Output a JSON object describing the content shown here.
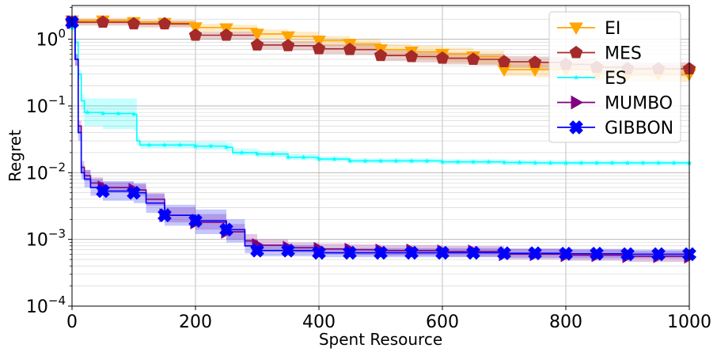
{
  "chart_data": {
    "type": "line",
    "title": "",
    "xlabel": "Spent Resource",
    "ylabel": "Regret",
    "xlim": [
      0,
      1000
    ],
    "ylim": [
      0.0001,
      3.2
    ],
    "yscale": "log",
    "grid": true,
    "legend_position": "top-right",
    "x_ticks": [
      0,
      200,
      400,
      600,
      800,
      1000
    ],
    "x_tick_labels": [
      "0",
      "200",
      "400",
      "600",
      "800",
      "1000"
    ],
    "y_ticks": [
      0.0001,
      0.001,
      0.01,
      0.1,
      1
    ],
    "y_tick_labels": [
      {
        "base": "10",
        "exp": "−4"
      },
      {
        "base": "10",
        "exp": "−3"
      },
      {
        "base": "10",
        "exp": "−2"
      },
      {
        "base": "10",
        "exp": "−1"
      },
      {
        "base": "10",
        "exp": "0"
      }
    ],
    "series": [
      {
        "name": "EI",
        "color": "#ffa500",
        "marker": "triangle-down",
        "x": [
          0,
          50,
          100,
          150,
          200,
          250,
          300,
          350,
          400,
          450,
          500,
          550,
          600,
          650,
          700,
          750,
          800,
          850,
          900,
          950,
          1000
        ],
        "y": [
          1.9,
          1.9,
          1.8,
          1.75,
          1.5,
          1.45,
          1.2,
          1.1,
          0.95,
          0.85,
          0.7,
          0.65,
          0.6,
          0.55,
          0.35,
          0.35,
          0.35,
          0.3,
          0.3,
          0.3,
          0.3
        ],
        "lower": [
          1.7,
          1.7,
          1.6,
          1.55,
          1.3,
          1.25,
          1.0,
          0.9,
          0.78,
          0.7,
          0.55,
          0.5,
          0.45,
          0.42,
          0.28,
          0.27,
          0.26,
          0.24,
          0.23,
          0.23,
          0.22
        ],
        "upper": [
          2.1,
          2.1,
          2.0,
          1.95,
          1.7,
          1.65,
          1.4,
          1.3,
          1.12,
          1.0,
          0.85,
          0.8,
          0.75,
          0.68,
          0.45,
          0.45,
          0.45,
          0.4,
          0.4,
          0.4,
          0.4
        ]
      },
      {
        "name": "MES",
        "color": "#a52a2a",
        "marker": "pentagon",
        "x": [
          0,
          50,
          100,
          150,
          200,
          250,
          300,
          350,
          400,
          450,
          500,
          550,
          600,
          650,
          700,
          750,
          800,
          850,
          900,
          950,
          1000
        ],
        "y": [
          1.8,
          1.8,
          1.7,
          1.7,
          1.15,
          1.15,
          0.82,
          0.8,
          0.72,
          0.7,
          0.57,
          0.55,
          0.52,
          0.5,
          0.46,
          0.45,
          0.42,
          0.38,
          0.36,
          0.36,
          0.36
        ],
        "lower": [
          1.6,
          1.6,
          1.5,
          1.5,
          1.0,
          1.0,
          0.7,
          0.68,
          0.6,
          0.58,
          0.47,
          0.45,
          0.42,
          0.41,
          0.37,
          0.36,
          0.34,
          0.3,
          0.28,
          0.28,
          0.28
        ],
        "upper": [
          2.0,
          2.0,
          1.9,
          1.9,
          1.3,
          1.3,
          0.95,
          0.93,
          0.85,
          0.83,
          0.68,
          0.66,
          0.63,
          0.6,
          0.56,
          0.55,
          0.52,
          0.47,
          0.45,
          0.45,
          0.45
        ]
      },
      {
        "name": "ES",
        "color": "#00ffff",
        "marker": "star",
        "x": [
          0,
          5,
          10,
          15,
          20,
          50,
          100,
          105,
          110,
          150,
          200,
          250,
          260,
          300,
          350,
          400,
          450,
          500,
          600,
          700,
          750,
          800,
          900,
          1000
        ],
        "y": [
          1.5,
          0.9,
          0.3,
          0.12,
          0.08,
          0.077,
          0.075,
          0.03,
          0.026,
          0.026,
          0.025,
          0.024,
          0.02,
          0.019,
          0.017,
          0.016,
          0.015,
          0.015,
          0.0145,
          0.0142,
          0.014,
          0.014,
          0.014,
          0.014
        ],
        "lower": [
          1.3,
          0.8,
          0.25,
          0.09,
          0.05,
          0.045,
          0.042,
          0.026,
          0.023,
          0.023,
          0.022,
          0.021,
          0.018,
          0.017,
          0.0155,
          0.0147,
          0.0138,
          0.0138,
          0.0133,
          0.013,
          0.0128,
          0.0128,
          0.0128,
          0.0128
        ],
        "upper": [
          1.7,
          1.0,
          0.35,
          0.15,
          0.13,
          0.13,
          0.13,
          0.035,
          0.03,
          0.03,
          0.029,
          0.028,
          0.023,
          0.021,
          0.019,
          0.0175,
          0.0163,
          0.0163,
          0.0158,
          0.0155,
          0.0153,
          0.0152,
          0.0152,
          0.0152
        ]
      },
      {
        "name": "MUMBO",
        "color": "#800080",
        "marker": "triangle-right",
        "x": [
          0,
          5,
          10,
          15,
          20,
          30,
          50,
          100,
          120,
          150,
          200,
          250,
          280,
          300,
          350,
          400,
          450,
          500,
          600,
          700,
          800,
          900,
          1000
        ],
        "y": [
          1.8,
          0.5,
          0.05,
          0.012,
          0.009,
          0.007,
          0.006,
          0.0055,
          0.004,
          0.0023,
          0.0018,
          0.0013,
          0.00095,
          0.00082,
          0.00075,
          0.00072,
          0.0007,
          0.00068,
          0.00066,
          0.0006,
          0.00058,
          0.00056,
          0.00055
        ],
        "lower": [
          1.6,
          0.4,
          0.04,
          0.01,
          0.0075,
          0.006,
          0.005,
          0.0045,
          0.0032,
          0.0018,
          0.0014,
          0.001,
          0.00078,
          0.00068,
          0.00063,
          0.0006,
          0.00058,
          0.00057,
          0.00055,
          0.0005,
          0.00048,
          0.00046,
          0.00045
        ],
        "upper": [
          2.0,
          0.6,
          0.06,
          0.015,
          0.011,
          0.0085,
          0.0072,
          0.0067,
          0.005,
          0.003,
          0.0024,
          0.0017,
          0.0012,
          0.001,
          0.0009,
          0.00087,
          0.00084,
          0.00082,
          0.0008,
          0.00072,
          0.0007,
          0.00067,
          0.00066
        ]
      },
      {
        "name": "GIBBON",
        "color": "#0000ff",
        "marker": "x-filled",
        "x": [
          0,
          5,
          10,
          15,
          20,
          30,
          50,
          100,
          120,
          150,
          200,
          250,
          280,
          300,
          350,
          400,
          450,
          500,
          600,
          700,
          800,
          900,
          1000
        ],
        "y": [
          1.8,
          0.5,
          0.04,
          0.01,
          0.008,
          0.006,
          0.0053,
          0.005,
          0.0035,
          0.0023,
          0.0019,
          0.0014,
          0.0008,
          0.00068,
          0.00068,
          0.00063,
          0.00063,
          0.00063,
          0.00063,
          0.00062,
          0.00061,
          0.0006,
          0.0006
        ],
        "lower": [
          1.6,
          0.4,
          0.03,
          0.008,
          0.006,
          0.0045,
          0.0038,
          0.0035,
          0.0025,
          0.0016,
          0.0012,
          0.0009,
          0.00062,
          0.00056,
          0.00056,
          0.00054,
          0.00054,
          0.00054,
          0.00054,
          0.00053,
          0.00052,
          0.00052,
          0.00052
        ],
        "upper": [
          2.0,
          0.6,
          0.05,
          0.013,
          0.011,
          0.008,
          0.0075,
          0.007,
          0.0048,
          0.0033,
          0.0028,
          0.002,
          0.001,
          0.00082,
          0.00082,
          0.00074,
          0.00074,
          0.00074,
          0.00074,
          0.00073,
          0.00072,
          0.0007,
          0.0007
        ]
      }
    ],
    "marker_x": [
      0,
      50,
      100,
      150,
      200,
      250,
      300,
      350,
      400,
      450,
      500,
      550,
      600,
      650,
      700,
      750,
      800,
      850,
      900,
      950,
      1000
    ]
  }
}
